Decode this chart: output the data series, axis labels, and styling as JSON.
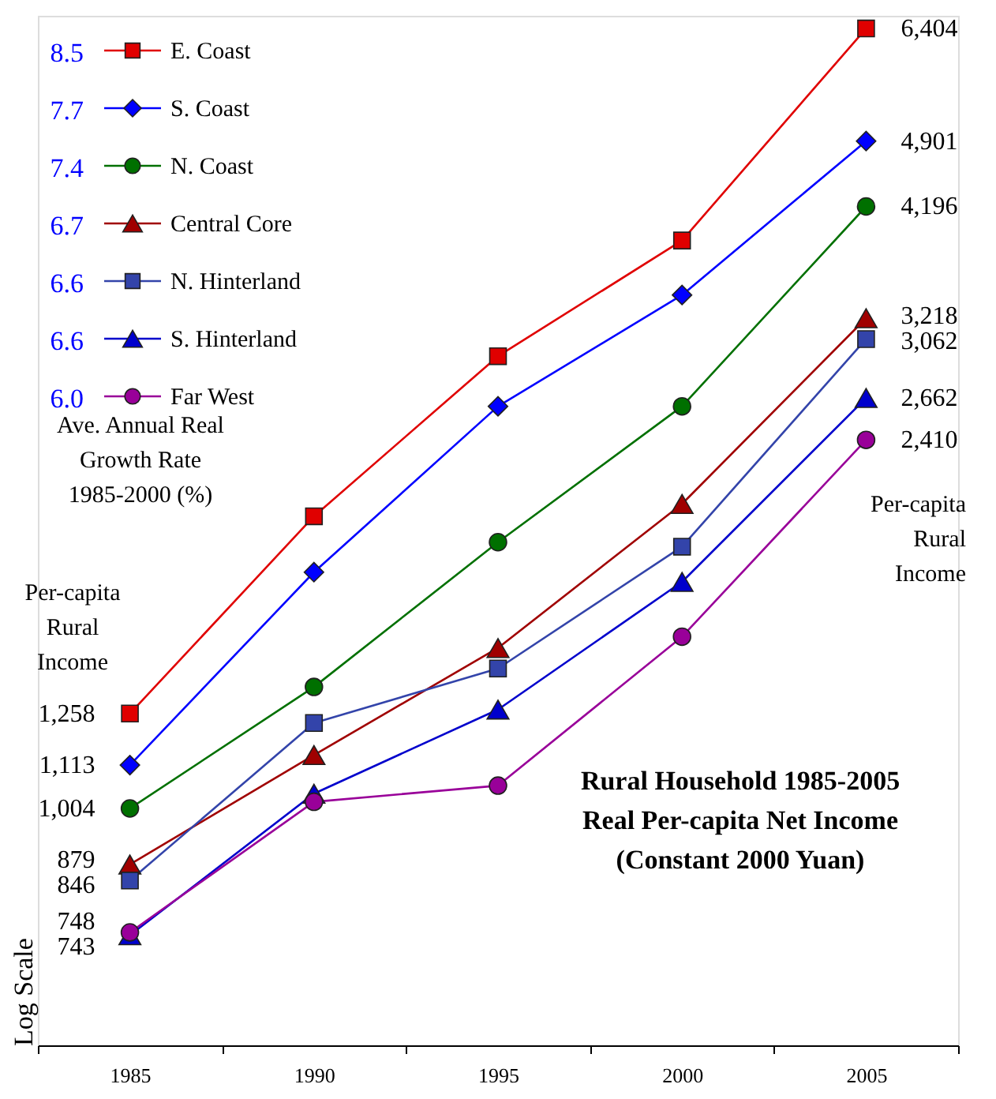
{
  "chart_data": {
    "type": "line",
    "title": "Rural Household 1985-2005\nReal Per-capita Net Income\n(Constant 2000 Yuan)",
    "ylabel": "Log Scale",
    "log": true,
    "tick_labels": "x",
    "legend": "top left",
    "categories": [
      "1985",
      "1990",
      "1995",
      "2000",
      "2005"
    ],
    "ylim": [
      572,
      6600
    ],
    "annotations": [
      "8.5",
      "7.7",
      "7.4",
      "6.7",
      "6.6",
      "6.6",
      "6.0",
      "Ave. Annual Real\nGrowth Rate\n1985-2000 (%)",
      "Per-capita\nRural\nIncome",
      "Per-capita\nRural\nIncome"
    ],
    "series": [
      {
        "name": "E. Coast",
        "color": "#e00000",
        "marker": "square",
        "values": [
          1258,
          2010,
          2940,
          3870,
          6404
        ],
        "value_labels": [
          "1,258",
          null,
          null,
          null,
          "6,404"
        ]
      },
      {
        "name": "S. Coast",
        "color": "#0000ff",
        "marker": "diamond",
        "values": [
          1113,
          1760,
          2610,
          3400,
          4901
        ],
        "value_labels": [
          "1,113",
          null,
          null,
          null,
          "4,901"
        ]
      },
      {
        "name": "N. Coast",
        "color": "#007000",
        "marker": "circle",
        "values": [
          1004,
          1340,
          1890,
          2610,
          4196
        ],
        "value_labels": [
          "1,004",
          null,
          null,
          null,
          "4,196"
        ]
      },
      {
        "name": "Central Core",
        "color": "#a00000",
        "marker": "triangle",
        "values": [
          879,
          1140,
          1470,
          2070,
          3218
        ],
        "value_labels": [
          "879",
          null,
          null,
          null,
          "3,218"
        ]
      },
      {
        "name": "N. Hinterland",
        "color": "#3344aa",
        "marker": "square",
        "values": [
          846,
          1230,
          1400,
          1870,
          3062
        ],
        "value_labels": [
          "846",
          null,
          null,
          null,
          "3,062"
        ]
      },
      {
        "name": "S. Hinterland",
        "color": "#0000cc",
        "marker": "triangle",
        "values": [
          743,
          1040,
          1270,
          1720,
          2662
        ],
        "value_labels": [
          "743",
          null,
          null,
          null,
          "2,662"
        ]
      },
      {
        "name": "Far West",
        "color": "#990099",
        "marker": "circle",
        "values": [
          748,
          1020,
          1060,
          1510,
          2410
        ],
        "value_labels": [
          "748",
          null,
          null,
          null,
          "2,410"
        ]
      }
    ]
  }
}
